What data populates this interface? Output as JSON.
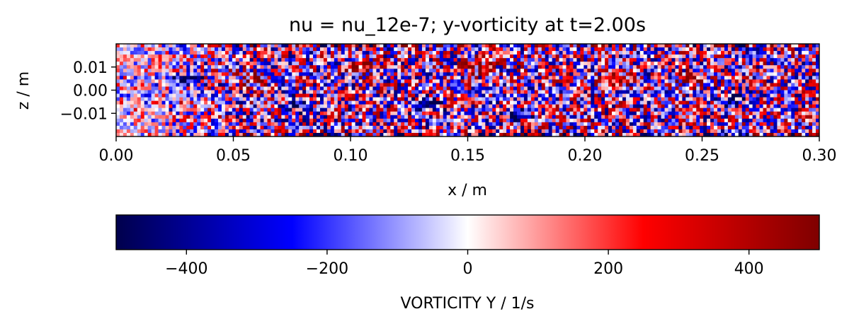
{
  "chart_data": [
    {
      "type": "heatmap",
      "title": "nu = nu_12e-7; y-vorticity at t=2.00s",
      "xlabel": "x / m",
      "ylabel": "z / m",
      "xlim": [
        0.0,
        0.3
      ],
      "ylim": [
        -0.02,
        0.02
      ],
      "xticks": [
        "0.00",
        "0.05",
        "0.10",
        "0.15",
        "0.20",
        "0.25",
        "0.30"
      ],
      "yticks": [
        "−0.01",
        "0.00",
        "0.01"
      ],
      "colormap": "seismic",
      "grid": false,
      "field_description_visible": "noisy red/blue y-vorticity field; weaker near x<0.05 with horizontal streaks; coherent patches around x≈0.10, 0.13, 0.16, 0.17, 0.24, 0.27"
    },
    {
      "type": "colorbar",
      "label": "VORTICITY Y / 1/s",
      "range": [
        -500,
        500
      ],
      "ticks": [
        "−400",
        "−200",
        "0",
        "200",
        "400"
      ],
      "tick_values": [
        -400,
        -200,
        0,
        200,
        400
      ],
      "colors": {
        "min": "#00004c",
        "mid_low": "#0000ff",
        "zero": "#ffffff",
        "mid_high": "#ff0000",
        "max": "#7f0000"
      }
    }
  ]
}
